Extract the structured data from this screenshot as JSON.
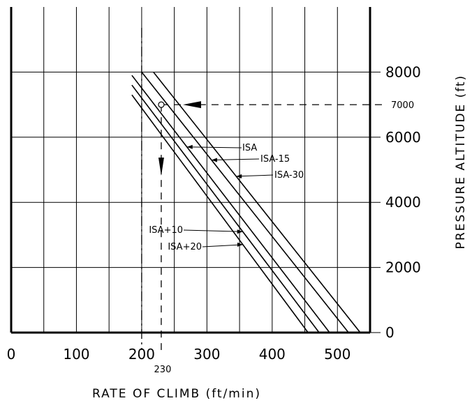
{
  "chart_data": {
    "type": "line",
    "xlabel": "RATE OF CLIMB (ft/min)",
    "ylabel": "PRESSURE ALTITUDE (ft)",
    "xlim": [
      0,
      550
    ],
    "ylim": [
      0,
      10000
    ],
    "x_ticks": [
      "0",
      "100",
      "200",
      "300",
      "400",
      "500"
    ],
    "y_ticks": [
      "0",
      "2000",
      "4000",
      "6000",
      "8000"
    ],
    "grid": true,
    "series": [
      {
        "name": "ISA+20",
        "points": [
          [
            185,
            7300
          ],
          [
            455,
            0
          ]
        ]
      },
      {
        "name": "ISA+10",
        "points": [
          [
            185,
            7600
          ],
          [
            472,
            0
          ]
        ]
      },
      {
        "name": "ISA",
        "points": [
          [
            185,
            7900
          ],
          [
            488,
            0
          ]
        ]
      },
      {
        "name": "ISA-15",
        "points": [
          [
            200,
            8000
          ],
          [
            517,
            0
          ]
        ]
      },
      {
        "name": "ISA-30",
        "points": [
          [
            218,
            8000
          ],
          [
            535,
            0
          ]
        ]
      }
    ],
    "annotations": {
      "example_altitude": "7000",
      "example_rate": "230",
      "reference_rate_line": 200
    }
  }
}
